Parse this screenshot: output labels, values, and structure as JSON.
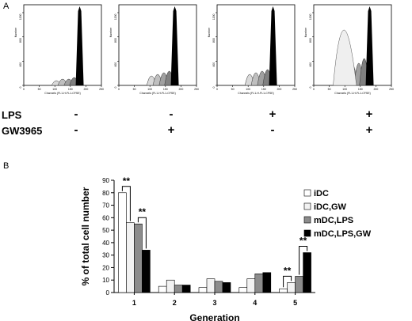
{
  "panels": {
    "a_label": "A",
    "b_label": "B"
  },
  "histograms": {
    "axis_x_label": "Channels (FL1-H-FL1-CFSE)",
    "axis_y_label": "Number",
    "x_ticks": [
      "0",
      "50",
      "100",
      "150",
      "200",
      "250"
    ],
    "y_ticks": [
      "0",
      "400",
      "800",
      "1200"
    ]
  },
  "conditions": {
    "rows": [
      {
        "label": "LPS",
        "values": [
          "-",
          "-",
          "+",
          "+"
        ]
      },
      {
        "label": "GW3965",
        "values": [
          "-",
          "+",
          "-",
          "+"
        ]
      }
    ]
  },
  "chart_data": {
    "type": "bar",
    "categories": [
      "1",
      "2",
      "3",
      "4",
      "5"
    ],
    "series": [
      {
        "name": "iDC",
        "values": [
          80,
          5,
          4,
          4,
          3
        ],
        "color": "#ffffff"
      },
      {
        "name": "iDC,GW",
        "values": [
          56,
          10,
          11,
          11,
          8
        ],
        "color": "#f2f2f2"
      },
      {
        "name": "mDC,LPS",
        "values": [
          55,
          6,
          9,
          15,
          13
        ],
        "color": "#8c8c8c"
      },
      {
        "name": "mDC,LPS,GW",
        "values": [
          34,
          6,
          8,
          16,
          32
        ],
        "color": "#000000"
      }
    ],
    "xlabel": "Generation",
    "ylabel": "% of total cell number",
    "ylim": [
      0,
      90
    ],
    "yticks": [
      0,
      10,
      20,
      30,
      40,
      50,
      60,
      70,
      80,
      90
    ],
    "annotations": [
      "**",
      "**",
      "**",
      "**"
    ],
    "legend_position": "right",
    "grid": false
  }
}
